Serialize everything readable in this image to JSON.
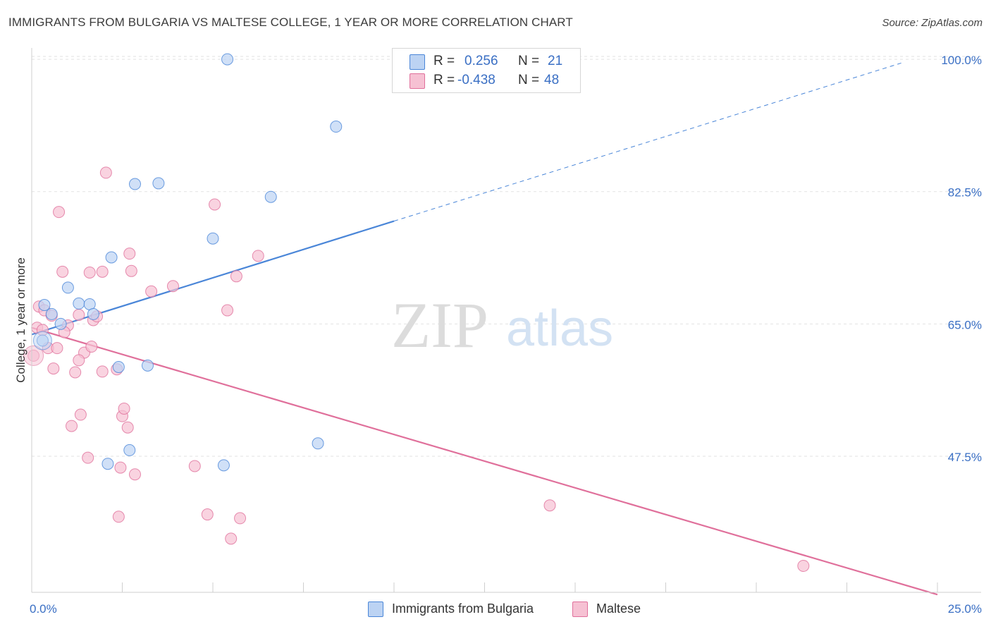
{
  "chart_data": {
    "type": "scatter",
    "title": "IMMIGRANTS FROM BULGARIA VS MALTESE COLLEGE, 1 YEAR OR MORE CORRELATION CHART",
    "source": "Source: ZipAtlas.com",
    "xlabel": "",
    "ylabel": "College, 1 year or more",
    "xlim": [
      0,
      25
    ],
    "ylim": [
      29.5,
      101.5
    ],
    "x_tick_labels": [
      "0.0%",
      "25.0%"
    ],
    "y_ticks": [
      47.5,
      65.0,
      82.5,
      100.0
    ],
    "y_tick_labels": [
      "47.5%",
      "65.0%",
      "82.5%",
      "100.0%"
    ],
    "grid": true,
    "watermark": "ZIPatlas",
    "series": [
      {
        "name": "Immigrants from Bulgaria",
        "color": "#4a86d8",
        "fill": "#bcd3f3",
        "R": "0.256",
        "N": "21",
        "points": [
          [
            0.3,
            62.8
          ],
          [
            0.35,
            67.5
          ],
          [
            0.55,
            66.3
          ],
          [
            0.8,
            65.0
          ],
          [
            1.0,
            69.8
          ],
          [
            1.3,
            67.7
          ],
          [
            1.6,
            67.6
          ],
          [
            1.7,
            66.3
          ],
          [
            2.1,
            46.5
          ],
          [
            2.2,
            73.8
          ],
          [
            2.4,
            59.3
          ],
          [
            2.7,
            48.3
          ],
          [
            2.85,
            83.5
          ],
          [
            3.2,
            59.5
          ],
          [
            3.5,
            83.6
          ],
          [
            5.0,
            76.3
          ],
          [
            5.3,
            46.3
          ],
          [
            6.6,
            81.8
          ],
          [
            7.9,
            49.2
          ],
          [
            8.4,
            91.1
          ],
          [
            5.4,
            100.0
          ]
        ],
        "trend": {
          "x0": 0,
          "y0": 63.6,
          "x1": 10.0,
          "y1": 78.6,
          "dash_x1": 24.0,
          "dash_y1": 99.5
        }
      },
      {
        "name": "Maltese",
        "color": "#e0709b",
        "fill": "#f6c1d3",
        "R": "-0.438",
        "N": "48",
        "points": [
          [
            0.05,
            60.8
          ],
          [
            0.15,
            64.5
          ],
          [
            0.2,
            67.3
          ],
          [
            0.3,
            64.2
          ],
          [
            0.35,
            66.8
          ],
          [
            0.45,
            61.8
          ],
          [
            0.55,
            66.1
          ],
          [
            0.6,
            59.1
          ],
          [
            0.7,
            61.8
          ],
          [
            0.75,
            79.8
          ],
          [
            0.85,
            71.9
          ],
          [
            1.0,
            64.8
          ],
          [
            1.1,
            51.5
          ],
          [
            1.2,
            58.6
          ],
          [
            1.3,
            66.2
          ],
          [
            1.35,
            53.0
          ],
          [
            1.45,
            61.2
          ],
          [
            1.55,
            47.3
          ],
          [
            1.6,
            71.8
          ],
          [
            1.65,
            62.0
          ],
          [
            1.7,
            65.5
          ],
          [
            1.8,
            66.0
          ],
          [
            1.95,
            71.9
          ],
          [
            1.95,
            58.7
          ],
          [
            2.05,
            85.0
          ],
          [
            2.4,
            39.5
          ],
          [
            2.45,
            46.0
          ],
          [
            2.5,
            52.8
          ],
          [
            2.55,
            53.8
          ],
          [
            2.65,
            51.3
          ],
          [
            2.7,
            74.3
          ],
          [
            2.75,
            72.0
          ],
          [
            2.85,
            45.1
          ],
          [
            3.3,
            69.3
          ],
          [
            3.9,
            70.0
          ],
          [
            4.5,
            46.2
          ],
          [
            4.85,
            39.8
          ],
          [
            5.05,
            80.8
          ],
          [
            5.4,
            66.8
          ],
          [
            5.5,
            36.6
          ],
          [
            5.65,
            71.3
          ],
          [
            5.75,
            39.3
          ],
          [
            6.25,
            74.0
          ],
          [
            14.3,
            41.0
          ],
          [
            21.3,
            33.0
          ],
          [
            0.9,
            63.9
          ],
          [
            1.3,
            60.2
          ],
          [
            2.35,
            59.0
          ]
        ],
        "trend": {
          "x0": 0,
          "y0": 64.5,
          "x1": 25.0,
          "y1": 29.2
        }
      }
    ]
  }
}
